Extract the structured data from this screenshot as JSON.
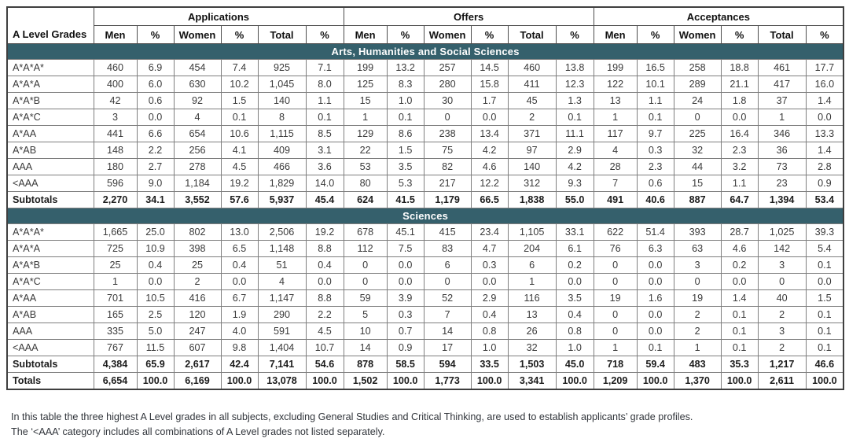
{
  "colors": {
    "section_bar_bg": "#35606C",
    "section_bar_text": "#FFFFFF",
    "border_inner": "#7E7E7E",
    "border_outer": "#3F3F3F",
    "data_text": "#3A3A3A"
  },
  "table": {
    "corner_header": "A Level Grades",
    "groups": [
      "Applications",
      "Offers",
      "Acceptances"
    ],
    "sub_headers": [
      "Men",
      "%",
      "Women",
      "%",
      "Total",
      "%"
    ],
    "sections": [
      {
        "title": "Arts, Humanities and Social Sciences",
        "rows": [
          {
            "grade": "A*A*A*",
            "bold": false,
            "values": [
              "460",
              "6.9",
              "454",
              "7.4",
              "925",
              "7.1",
              "199",
              "13.2",
              "257",
              "14.5",
              "460",
              "13.8",
              "199",
              "16.5",
              "258",
              "18.8",
              "461",
              "17.7"
            ]
          },
          {
            "grade": "A*A*A",
            "bold": false,
            "values": [
              "400",
              "6.0",
              "630",
              "10.2",
              "1,045",
              "8.0",
              "125",
              "8.3",
              "280",
              "15.8",
              "411",
              "12.3",
              "122",
              "10.1",
              "289",
              "21.1",
              "417",
              "16.0"
            ]
          },
          {
            "grade": "A*A*B",
            "bold": false,
            "values": [
              "42",
              "0.6",
              "92",
              "1.5",
              "140",
              "1.1",
              "15",
              "1.0",
              "30",
              "1.7",
              "45",
              "1.3",
              "13",
              "1.1",
              "24",
              "1.8",
              "37",
              "1.4"
            ]
          },
          {
            "grade": "A*A*C",
            "bold": false,
            "values": [
              "3",
              "0.0",
              "4",
              "0.1",
              "8",
              "0.1",
              "1",
              "0.1",
              "0",
              "0.0",
              "2",
              "0.1",
              "1",
              "0.1",
              "0",
              "0.0",
              "1",
              "0.0"
            ]
          },
          {
            "grade": "A*AA",
            "bold": false,
            "values": [
              "441",
              "6.6",
              "654",
              "10.6",
              "1,115",
              "8.5",
              "129",
              "8.6",
              "238",
              "13.4",
              "371",
              "11.1",
              "117",
              "9.7",
              "225",
              "16.4",
              "346",
              "13.3"
            ]
          },
          {
            "grade": "A*AB",
            "bold": false,
            "values": [
              "148",
              "2.2",
              "256",
              "4.1",
              "409",
              "3.1",
              "22",
              "1.5",
              "75",
              "4.2",
              "97",
              "2.9",
              "4",
              "0.3",
              "32",
              "2.3",
              "36",
              "1.4"
            ]
          },
          {
            "grade": "AAA",
            "bold": false,
            "values": [
              "180",
              "2.7",
              "278",
              "4.5",
              "466",
              "3.6",
              "53",
              "3.5",
              "82",
              "4.6",
              "140",
              "4.2",
              "28",
              "2.3",
              "44",
              "3.2",
              "73",
              "2.8"
            ]
          },
          {
            "grade": "<AAA",
            "bold": false,
            "values": [
              "596",
              "9.0",
              "1,184",
              "19.2",
              "1,829",
              "14.0",
              "80",
              "5.3",
              "217",
              "12.2",
              "312",
              "9.3",
              "7",
              "0.6",
              "15",
              "1.1",
              "23",
              "0.9"
            ]
          },
          {
            "grade": "Subtotals",
            "bold": true,
            "values": [
              "2,270",
              "34.1",
              "3,552",
              "57.6",
              "5,937",
              "45.4",
              "624",
              "41.5",
              "1,179",
              "66.5",
              "1,838",
              "55.0",
              "491",
              "40.6",
              "887",
              "64.7",
              "1,394",
              "53.4"
            ]
          }
        ]
      },
      {
        "title": "Sciences",
        "rows": [
          {
            "grade": "A*A*A*",
            "bold": false,
            "values": [
              "1,665",
              "25.0",
              "802",
              "13.0",
              "2,506",
              "19.2",
              "678",
              "45.1",
              "415",
              "23.4",
              "1,105",
              "33.1",
              "622",
              "51.4",
              "393",
              "28.7",
              "1,025",
              "39.3"
            ]
          },
          {
            "grade": "A*A*A",
            "bold": false,
            "values": [
              "725",
              "10.9",
              "398",
              "6.5",
              "1,148",
              "8.8",
              "112",
              "7.5",
              "83",
              "4.7",
              "204",
              "6.1",
              "76",
              "6.3",
              "63",
              "4.6",
              "142",
              "5.4"
            ]
          },
          {
            "grade": "A*A*B",
            "bold": false,
            "values": [
              "25",
              "0.4",
              "25",
              "0.4",
              "51",
              "0.4",
              "0",
              "0.0",
              "6",
              "0.3",
              "6",
              "0.2",
              "0",
              "0.0",
              "3",
              "0.2",
              "3",
              "0.1"
            ]
          },
          {
            "grade": "A*A*C",
            "bold": false,
            "values": [
              "1",
              "0.0",
              "2",
              "0.0",
              "4",
              "0.0",
              "0",
              "0.0",
              "0",
              "0.0",
              "1",
              "0.0",
              "0",
              "0.0",
              "0",
              "0.0",
              "0",
              "0.0"
            ]
          },
          {
            "grade": "A*AA",
            "bold": false,
            "values": [
              "701",
              "10.5",
              "416",
              "6.7",
              "1,147",
              "8.8",
              "59",
              "3.9",
              "52",
              "2.9",
              "116",
              "3.5",
              "19",
              "1.6",
              "19",
              "1.4",
              "40",
              "1.5"
            ]
          },
          {
            "grade": "A*AB",
            "bold": false,
            "values": [
              "165",
              "2.5",
              "120",
              "1.9",
              "290",
              "2.2",
              "5",
              "0.3",
              "7",
              "0.4",
              "13",
              "0.4",
              "0",
              "0.0",
              "2",
              "0.1",
              "2",
              "0.1"
            ]
          },
          {
            "grade": "AAA",
            "bold": false,
            "values": [
              "335",
              "5.0",
              "247",
              "4.0",
              "591",
              "4.5",
              "10",
              "0.7",
              "14",
              "0.8",
              "26",
              "0.8",
              "0",
              "0.0",
              "2",
              "0.1",
              "3",
              "0.1"
            ]
          },
          {
            "grade": "<AAA",
            "bold": false,
            "values": [
              "767",
              "11.5",
              "607",
              "9.8",
              "1,404",
              "10.7",
              "14",
              "0.9",
              "17",
              "1.0",
              "32",
              "1.0",
              "1",
              "0.1",
              "1",
              "0.1",
              "2",
              "0.1"
            ]
          },
          {
            "grade": "Subtotals",
            "bold": true,
            "values": [
              "4,384",
              "65.9",
              "2,617",
              "42.4",
              "7,141",
              "54.6",
              "878",
              "58.5",
              "594",
              "33.5",
              "1,503",
              "45.0",
              "718",
              "59.4",
              "483",
              "35.3",
              "1,217",
              "46.6"
            ]
          }
        ]
      }
    ],
    "totals": {
      "grade": "Totals",
      "bold": true,
      "values": [
        "6,654",
        "100.0",
        "6,169",
        "100.0",
        "13,078",
        "100.0",
        "1,502",
        "100.0",
        "1,773",
        "100.0",
        "3,341",
        "100.0",
        "1,209",
        "100.0",
        "1,370",
        "100.0",
        "2,611",
        "100.0"
      ]
    }
  },
  "footnotes": [
    "In this table the three highest A Level grades in all subjects, excluding General Studies and Critical Thinking, are used to establish applicants’ grade profiles.",
    "The ‘<AAA’ category includes all combinations of A Level grades not listed separately."
  ]
}
